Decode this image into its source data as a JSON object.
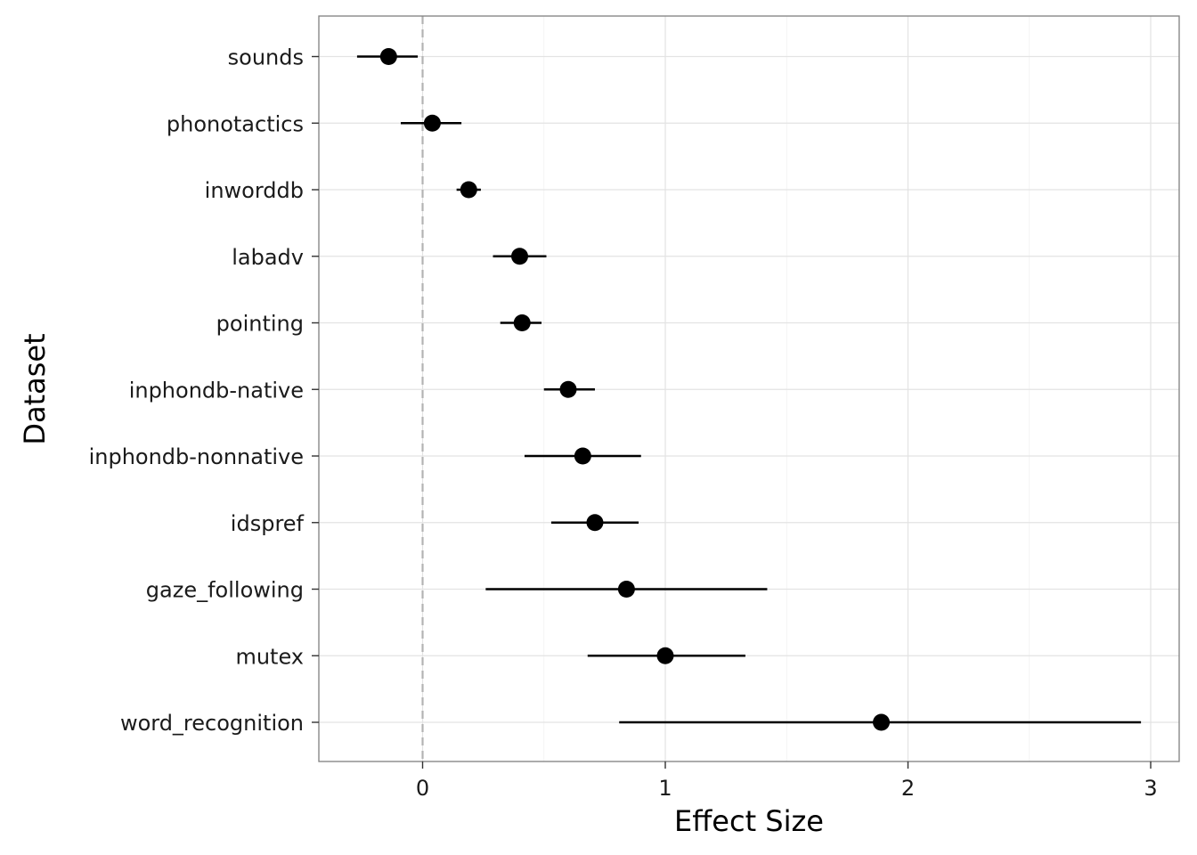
{
  "chart_data": {
    "type": "forest",
    "xlabel": "Effect Size",
    "ylabel": "Dataset",
    "xlim": [
      -0.43,
      3.12
    ],
    "x_ticks": [
      0,
      1,
      2,
      3
    ],
    "x_tick_labels": [
      "0",
      "1",
      "2",
      "3"
    ],
    "reference_line": {
      "x": 0,
      "style": "dashed",
      "color": "#b3b3b3"
    },
    "grid": true,
    "point_color": "#000000",
    "rows": [
      {
        "label": "sounds",
        "estimate": -0.14,
        "lower": -0.27,
        "upper": -0.02
      },
      {
        "label": "phonotactics",
        "estimate": 0.04,
        "lower": -0.09,
        "upper": 0.16
      },
      {
        "label": "inworddb",
        "estimate": 0.19,
        "lower": 0.14,
        "upper": 0.24
      },
      {
        "label": "labadv",
        "estimate": 0.4,
        "lower": 0.29,
        "upper": 0.51
      },
      {
        "label": "pointing",
        "estimate": 0.41,
        "lower": 0.32,
        "upper": 0.49
      },
      {
        "label": "inphondb-native",
        "estimate": 0.6,
        "lower": 0.5,
        "upper": 0.71
      },
      {
        "label": "inphondb-nonnative",
        "estimate": 0.66,
        "lower": 0.42,
        "upper": 0.9
      },
      {
        "label": "idspref",
        "estimate": 0.71,
        "lower": 0.53,
        "upper": 0.89
      },
      {
        "label": "gaze_following",
        "estimate": 0.84,
        "lower": 0.26,
        "upper": 1.42
      },
      {
        "label": "mutex",
        "estimate": 1.0,
        "lower": 0.68,
        "upper": 1.33
      },
      {
        "label": "word_recognition",
        "estimate": 1.89,
        "lower": 0.81,
        "upper": 2.96
      }
    ]
  }
}
